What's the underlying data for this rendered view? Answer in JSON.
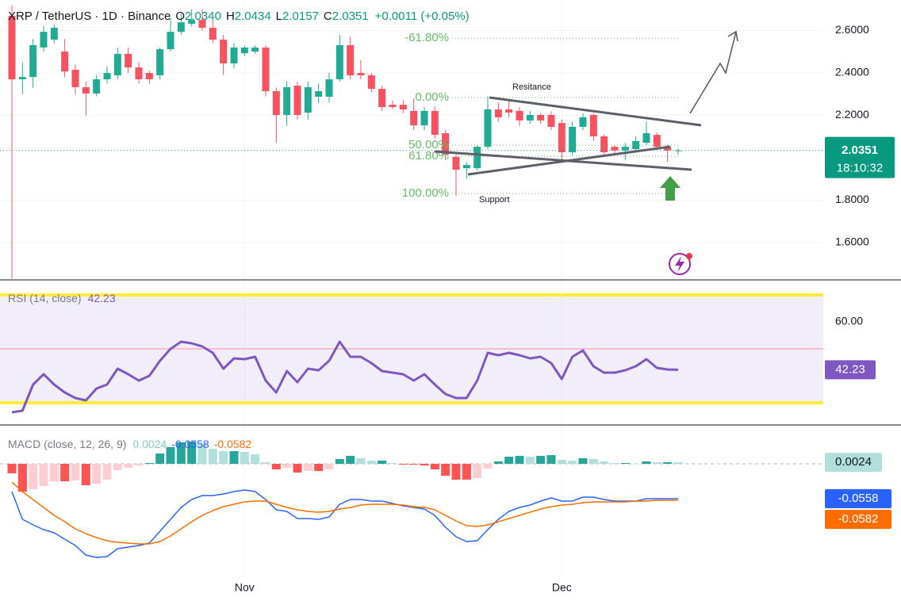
{
  "chart_data": [
    {
      "type": "candlestick",
      "title": "XRP / TetherUS · 1D · Binance",
      "header": [
        {
          "key": "O",
          "value": "2.0340"
        },
        {
          "key": "H",
          "value": "2.0434"
        },
        {
          "key": "L",
          "value": "2.0157"
        },
        {
          "key": "C",
          "value": "2.0351"
        }
      ],
      "change": "+0.0011 (+0.05%)",
      "countdown": "18:10:32",
      "up_color": "#22ab94",
      "down_color": "#f7525f",
      "categories": [
        null,
        null,
        null,
        null,
        null,
        null,
        null,
        null,
        null,
        null,
        null,
        null,
        null,
        null,
        null,
        null,
        null,
        null,
        null,
        null,
        null,
        null,
        "Nov",
        null,
        null,
        null,
        null,
        null,
        null,
        null,
        null,
        null,
        null,
        null,
        null,
        null,
        null,
        null,
        null,
        null,
        null,
        null,
        null,
        null,
        null,
        null,
        null,
        null,
        null,
        null,
        null,
        null,
        "Dec",
        null,
        null,
        null,
        null,
        null,
        null,
        null,
        null,
        null,
        null,
        null
      ],
      "open": [
        2.669,
        2.37,
        2.381,
        2.52,
        2.557,
        2.501,
        2.415,
        2.333,
        2.303,
        2.37,
        2.389,
        2.49,
        2.426,
        2.4,
        2.389,
        2.512,
        2.594,
        2.632,
        2.65,
        2.613,
        2.557,
        2.445,
        2.493,
        2.501,
        2.52,
        2.314,
        2.202,
        2.34,
        2.213,
        2.288,
        2.288,
        2.37,
        2.531,
        2.4,
        2.389,
        2.325,
        2.25,
        2.25,
        2.221,
        2.153,
        2.221,
        2.116,
        2.004,
        1.951,
        1.951,
        2.052,
        2.228,
        2.228,
        2.221,
        2.176,
        2.202,
        2.202,
        2.164,
        2.026,
        2.146,
        2.202,
        2.101,
        2.052,
        2.034,
        2.041,
        2.071,
        2.108,
        2.052,
        2.034
      ],
      "high": [
        2.72,
        2.45,
        2.56,
        2.62,
        2.63,
        2.56,
        2.44,
        2.36,
        2.39,
        2.43,
        2.52,
        2.52,
        2.45,
        2.41,
        2.52,
        2.66,
        2.68,
        2.7,
        2.7,
        2.65,
        2.58,
        2.54,
        2.53,
        2.53,
        2.53,
        2.33,
        2.36,
        2.36,
        2.36,
        2.35,
        2.4,
        2.58,
        2.57,
        2.46,
        2.4,
        2.34,
        2.27,
        2.27,
        2.28,
        2.24,
        2.24,
        2.13,
        2.02,
        1.98,
        2.06,
        2.29,
        2.26,
        2.27,
        2.24,
        2.22,
        2.21,
        2.22,
        2.18,
        2.17,
        2.21,
        2.21,
        2.11,
        2.06,
        2.07,
        2.1,
        2.17,
        2.12,
        2.06,
        2.0434
      ],
      "low": [
        1.43,
        2.3,
        2.33,
        2.5,
        2.54,
        2.38,
        2.3,
        2.2,
        2.29,
        2.35,
        2.37,
        2.4,
        2.35,
        2.35,
        2.37,
        2.5,
        2.58,
        2.62,
        2.6,
        2.54,
        2.39,
        2.42,
        2.48,
        2.49,
        2.29,
        2.07,
        2.15,
        2.18,
        2.18,
        2.26,
        2.26,
        2.36,
        2.37,
        2.37,
        2.31,
        2.22,
        2.23,
        2.21,
        2.13,
        2.13,
        2.09,
        1.99,
        1.82,
        1.9,
        1.94,
        2.04,
        2.17,
        2.19,
        2.15,
        2.16,
        2.16,
        2.13,
        1.99,
        2.01,
        2.13,
        2.08,
        2.01,
        2.02,
        1.99,
        2.03,
        2.06,
        2.04,
        1.98,
        2.0157
      ],
      "close": [
        2.37,
        2.381,
        2.531,
        2.594,
        2.613,
        2.407,
        2.333,
        2.303,
        2.37,
        2.4,
        2.49,
        2.426,
        2.37,
        2.37,
        2.512,
        2.594,
        2.639,
        2.65,
        2.613,
        2.557,
        2.445,
        2.52,
        2.52,
        2.52,
        2.314,
        2.202,
        2.333,
        2.202,
        2.333,
        2.314,
        2.37,
        2.531,
        2.389,
        2.389,
        2.325,
        2.239,
        2.239,
        2.228,
        2.153,
        2.221,
        2.108,
        2.015,
        1.944,
        1.966,
        2.052,
        2.228,
        2.191,
        2.213,
        2.176,
        2.202,
        2.176,
        2.146,
        2.026,
        2.146,
        2.191,
        2.101,
        2.026,
        2.034,
        2.052,
        2.079,
        2.116,
        2.052,
        2.034,
        2.0351
      ],
      "ylim": [
        1.428,
        2.744
      ],
      "yticks": [
        {
          "value": 2.6,
          "label": "2.6000"
        },
        {
          "value": 2.4,
          "label": "2.4000"
        },
        {
          "value": 2.2,
          "label": "2.2000"
        },
        {
          "value": 1.8,
          "label": "1.8000"
        },
        {
          "value": 1.6,
          "label": "1.6000"
        }
      ],
      "grid": true,
      "annotations": [
        {
          "label": "-61.80%",
          "value": 2.564
        },
        {
          "label": "0.00%",
          "value": 2.284
        },
        {
          "label": "50.00%",
          "value": 2.06
        },
        {
          "label": "61.80%",
          "value": 2.007
        },
        {
          "label": "100.00%",
          "value": 1.832
        }
      ],
      "annotation_color": "#66bb6a",
      "drawing_labels": [
        "Resitance",
        "Support"
      ]
    },
    {
      "type": "line",
      "title": "RSI (14, close)",
      "color": "#7e57c2",
      "values": [
        26.47,
        27.06,
        36.76,
        40.59,
        36.76,
        33.82,
        31.76,
        30.88,
        35.29,
        36.76,
        42.65,
        40.59,
        38.24,
        40.0,
        45.59,
        50.0,
        52.65,
        52.06,
        50.88,
        48.53,
        42.65,
        46.47,
        46.18,
        47.06,
        38.24,
        33.82,
        41.76,
        37.65,
        42.65,
        42.06,
        45.59,
        52.65,
        47.06,
        47.06,
        44.71,
        41.76,
        41.18,
        40.59,
        38.24,
        40.59,
        36.76,
        33.24,
        31.76,
        31.76,
        38.24,
        48.53,
        47.65,
        48.53,
        47.65,
        46.47,
        47.06,
        44.71,
        38.82,
        47.06,
        49.41,
        43.53,
        41.18,
        41.18,
        42.06,
        43.53,
        46.18,
        42.94,
        42.35,
        42.23
      ],
      "ylim": [
        22.06,
        75.3
      ],
      "yticks": [
        {
          "value": 60,
          "label": "60.00"
        }
      ],
      "bands": [
        70,
        30
      ],
      "midline": 50,
      "band_color": "#7e57c2",
      "band_line_color": "#ffeb3b",
      "midline_color": "#f8bbd0"
    },
    {
      "type": "macd",
      "title": "MACD (close, 12, 26, 9)",
      "ylim": [
        -0.1774,
        0.0608
      ],
      "series": [
        {
          "type": "bar",
          "colors": {
            "pos_up": "#26a69a",
            "pos_down": "#b2dfdb",
            "neg_down": "#ff5252",
            "neg_up": "#ffcdd2"
          },
          "values": [
            -0.0152,
            -0.0444,
            -0.0406,
            -0.0355,
            -0.0279,
            -0.0279,
            -0.0266,
            -0.0342,
            -0.0317,
            -0.0253,
            -0.0101,
            -0.0063,
            -0.0025,
            0.0013,
            0.0165,
            0.0266,
            0.0342,
            0.0355,
            0.0317,
            0.0241,
            0.0203,
            0.0203,
            0.019,
            0.0152,
            0.0025,
            -0.0089,
            -0.0063,
            -0.0139,
            -0.0114,
            -0.0114,
            -0.0089,
            0.0076,
            0.0127,
            0.0089,
            0.0051,
            0.0051,
            0.0013,
            -0.0013,
            -0.0013,
            -0.0025,
            -0.0089,
            -0.019,
            -0.0253,
            -0.0253,
            -0.0228,
            -0.0076,
            0.0038,
            0.0114,
            0.0127,
            0.0114,
            0.0127,
            0.0139,
            0.0063,
            0.0051,
            0.0089,
            0.0076,
            0.0038,
            0.0013,
            0.0013,
            0,
            0.0038,
            0.0025,
            0.0025,
            0.0024
          ]
        },
        {
          "type": "line",
          "color": "#2962ff",
          "values": [
            -0.0444,
            -0.0887,
            -0.0976,
            -0.1052,
            -0.1103,
            -0.1204,
            -0.1305,
            -0.1458,
            -0.1496,
            -0.1483,
            -0.1356,
            -0.1331,
            -0.1305,
            -0.1267,
            -0.1077,
            -0.0887,
            -0.0697,
            -0.057,
            -0.0507,
            -0.0507,
            -0.0482,
            -0.0444,
            -0.0418,
            -0.0444,
            -0.057,
            -0.0735,
            -0.076,
            -0.0875,
            -0.0875,
            -0.0887,
            -0.0849,
            -0.0646,
            -0.057,
            -0.057,
            -0.0596,
            -0.0596,
            -0.0634,
            -0.0672,
            -0.0697,
            -0.0722,
            -0.0824,
            -0.1014,
            -0.1166,
            -0.1242,
            -0.1229,
            -0.1052,
            -0.0887,
            -0.076,
            -0.0697,
            -0.0659,
            -0.0596,
            -0.0545,
            -0.0596,
            -0.0596,
            -0.0532,
            -0.0532,
            -0.057,
            -0.0596,
            -0.0596,
            -0.0596,
            -0.0558,
            -0.0558,
            -0.0558,
            -0.0558
          ]
        },
        {
          "type": "line",
          "color": "#ff6d00",
          "values": [
            -0.0292,
            -0.0444,
            -0.057,
            -0.0697,
            -0.0824,
            -0.0925,
            -0.1039,
            -0.1115,
            -0.1179,
            -0.1229,
            -0.1255,
            -0.1267,
            -0.128,
            -0.128,
            -0.1242,
            -0.1153,
            -0.1039,
            -0.0925,
            -0.0824,
            -0.0748,
            -0.0684,
            -0.0646,
            -0.0608,
            -0.0596,
            -0.0596,
            -0.0646,
            -0.0697,
            -0.0735,
            -0.076,
            -0.0773,
            -0.076,
            -0.0722,
            -0.0697,
            -0.0659,
            -0.0646,
            -0.0646,
            -0.0646,
            -0.0659,
            -0.0684,
            -0.0697,
            -0.0735,
            -0.0824,
            -0.0913,
            -0.0989,
            -0.1001,
            -0.0976,
            -0.0925,
            -0.0875,
            -0.0824,
            -0.0773,
            -0.0722,
            -0.0684,
            -0.0659,
            -0.0646,
            -0.0621,
            -0.0608,
            -0.0608,
            -0.0608,
            -0.0608,
            -0.0596,
            -0.0596,
            -0.0583,
            -0.0583,
            -0.0582
          ]
        }
      ]
    }
  ]
}
